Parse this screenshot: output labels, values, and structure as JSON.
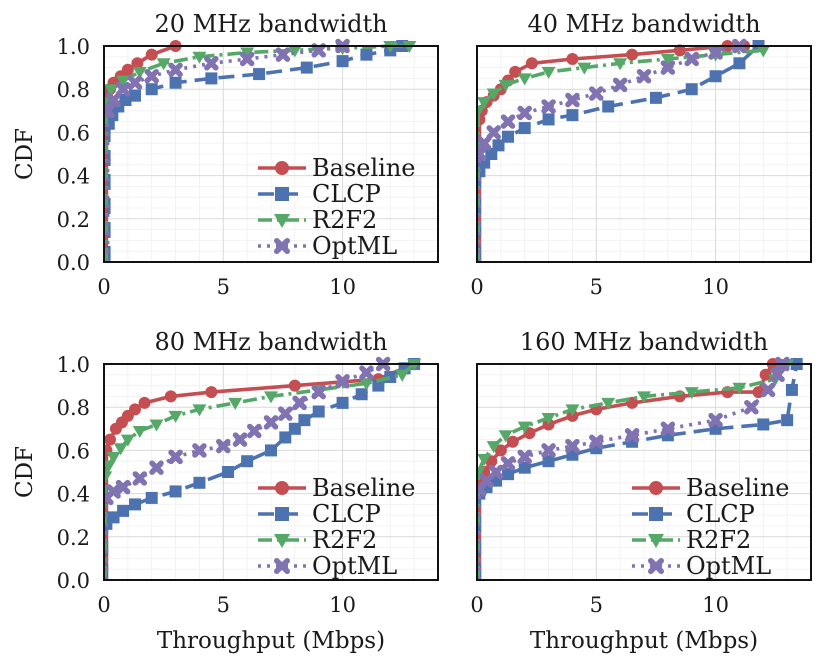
{
  "figure": {
    "ylabel": "CDF",
    "xlabel": "Throughput (Mbps)"
  },
  "series_styles": [
    {
      "name": "Baseline",
      "color": "#c44e52",
      "dash": "",
      "marker": "circle"
    },
    {
      "name": "CLCP",
      "color": "#4c72b0",
      "dash": "16,8",
      "marker": "square"
    },
    {
      "name": "R2F2",
      "color": "#55a868",
      "dash": "14,5,3,5",
      "marker": "triangle-down"
    },
    {
      "name": "OptML",
      "color": "#8172b2",
      "dash": "3,6",
      "marker": "x"
    }
  ],
  "chart_data": [
    {
      "type": "line",
      "title": "20 MHz bandwidth",
      "xlabel": "",
      "ylabel": "CDF",
      "xlim": [
        0,
        14
      ],
      "ylim": [
        0,
        1.0
      ],
      "xticks": [
        "0",
        "5",
        "10"
      ],
      "xtick_values": [
        0,
        5,
        10
      ],
      "yticks": [
        "0.0",
        "0.2",
        "0.4",
        "0.6",
        "0.8",
        "1.0"
      ],
      "ytick_values": [
        0,
        0.2,
        0.4,
        0.6,
        0.8,
        1.0
      ],
      "legend": [
        "Baseline",
        "CLCP",
        "R2F2",
        "OptML"
      ],
      "series": [
        {
          "name": "Baseline",
          "x": [
            0.1,
            0.1,
            0.15,
            0.25,
            0.4,
            0.7,
            1.0,
            1.4,
            2.0,
            3.0
          ],
          "y": [
            0.0,
            0.7,
            0.76,
            0.8,
            0.83,
            0.86,
            0.89,
            0.92,
            0.96,
            1.0
          ]
        },
        {
          "name": "CLCP",
          "x": [
            0.2,
            0.2,
            0.35,
            0.6,
            0.9,
            1.3,
            2.0,
            3.0,
            4.5,
            6.5,
            8.5,
            10.0,
            11.0,
            12.0,
            12.5
          ],
          "y": [
            0.0,
            0.64,
            0.68,
            0.72,
            0.75,
            0.77,
            0.8,
            0.83,
            0.85,
            0.87,
            0.9,
            0.93,
            0.96,
            0.98,
            1.0
          ]
        },
        {
          "name": "R2F2",
          "x": [
            0.1,
            0.1,
            0.3,
            0.8,
            1.5,
            2.5,
            4.0,
            6.0,
            8.0,
            10.0,
            12.0,
            12.8
          ],
          "y": [
            0.0,
            0.74,
            0.8,
            0.84,
            0.88,
            0.92,
            0.95,
            0.97,
            0.98,
            0.99,
            1.0,
            1.0
          ]
        },
        {
          "name": "OptML",
          "x": [
            0.15,
            0.15,
            0.4,
            0.8,
            1.3,
            2.0,
            3.0,
            4.5,
            6.0,
            7.5,
            9.0,
            10.0
          ],
          "y": [
            0.0,
            0.7,
            0.75,
            0.8,
            0.83,
            0.86,
            0.89,
            0.92,
            0.94,
            0.96,
            0.98,
            1.0
          ]
        }
      ]
    },
    {
      "type": "line",
      "title": "40 MHz bandwidth",
      "xlabel": "",
      "ylabel": "",
      "xlim": [
        0,
        14
      ],
      "ylim": [
        0,
        1.0
      ],
      "xticks": [
        "0",
        "5",
        "10"
      ],
      "xtick_values": [
        0,
        5,
        10
      ],
      "yticks": [],
      "ytick_values": [],
      "legend": [],
      "series": [
        {
          "name": "Baseline",
          "x": [
            0.1,
            0.1,
            0.2,
            0.4,
            0.7,
            1.0,
            1.3,
            1.6,
            2.3,
            4.0,
            6.5,
            8.5,
            10.5,
            11.2
          ],
          "y": [
            0.0,
            0.66,
            0.7,
            0.74,
            0.77,
            0.8,
            0.84,
            0.88,
            0.92,
            0.94,
            0.96,
            0.98,
            1.0,
            1.0
          ]
        },
        {
          "name": "CLCP",
          "x": [
            0.1,
            0.1,
            0.3,
            0.6,
            0.9,
            1.3,
            2.0,
            3.0,
            4.0,
            5.5,
            7.5,
            9.0,
            10.0,
            11.0,
            11.8
          ],
          "y": [
            0.0,
            0.42,
            0.46,
            0.5,
            0.54,
            0.58,
            0.62,
            0.66,
            0.68,
            0.72,
            0.76,
            0.8,
            0.86,
            0.92,
            1.0
          ]
        },
        {
          "name": "R2F2",
          "x": [
            0.05,
            0.05,
            0.3,
            0.7,
            1.2,
            2.0,
            3.0,
            4.5,
            6.0,
            8.0,
            10.0,
            12.0
          ],
          "y": [
            0.0,
            0.7,
            0.74,
            0.78,
            0.82,
            0.85,
            0.88,
            0.9,
            0.92,
            0.94,
            0.96,
            0.98
          ]
        },
        {
          "name": "OptML",
          "x": [
            0.1,
            0.1,
            0.3,
            0.7,
            1.3,
            2.0,
            3.0,
            4.0,
            5.0,
            6.0,
            7.0,
            8.0,
            9.0,
            10.0,
            11.0
          ],
          "y": [
            0.0,
            0.5,
            0.55,
            0.6,
            0.65,
            0.69,
            0.72,
            0.75,
            0.78,
            0.82,
            0.86,
            0.9,
            0.94,
            0.97,
            1.0
          ]
        }
      ]
    },
    {
      "type": "line",
      "title": "80 MHz bandwidth",
      "xlabel": "Throughput (Mbps)",
      "ylabel": "CDF",
      "xlim": [
        0,
        14
      ],
      "ylim": [
        0,
        1.0
      ],
      "xticks": [
        "0",
        "5",
        "10"
      ],
      "xtick_values": [
        0,
        5,
        10
      ],
      "yticks": [
        "0.0",
        "0.2",
        "0.4",
        "0.6",
        "0.8",
        "1.0"
      ],
      "ytick_values": [
        0,
        0.2,
        0.4,
        0.6,
        0.8,
        1.0
      ],
      "legend": [
        "Baseline",
        "CLCP",
        "R2F2",
        "OptML"
      ],
      "series": [
        {
          "name": "Baseline",
          "x": [
            0.1,
            0.1,
            0.25,
            0.5,
            0.75,
            1.0,
            1.3,
            1.7,
            2.8,
            4.5,
            8.0,
            11.5,
            13.0
          ],
          "y": [
            0.0,
            0.6,
            0.65,
            0.7,
            0.73,
            0.76,
            0.79,
            0.82,
            0.85,
            0.87,
            0.9,
            0.93,
            1.0
          ]
        },
        {
          "name": "CLCP",
          "x": [
            0.1,
            0.1,
            0.4,
            0.8,
            1.3,
            2.0,
            3.0,
            4.0,
            5.2,
            6.0,
            7.0,
            7.6,
            8.0,
            8.4,
            9.0,
            10.0,
            10.8,
            11.5,
            12.0,
            12.6,
            13.0
          ],
          "y": [
            0.0,
            0.26,
            0.29,
            0.32,
            0.35,
            0.38,
            0.41,
            0.45,
            0.5,
            0.55,
            0.6,
            0.66,
            0.7,
            0.74,
            0.78,
            0.82,
            0.86,
            0.9,
            0.94,
            0.98,
            1.0
          ]
        },
        {
          "name": "R2F2",
          "x": [
            0.05,
            0.05,
            0.2,
            0.4,
            0.7,
            1.0,
            1.5,
            2.2,
            3.0,
            4.0,
            5.5,
            7.0,
            9.0,
            11.0,
            12.5,
            13.0
          ],
          "y": [
            0.0,
            0.48,
            0.53,
            0.57,
            0.61,
            0.65,
            0.69,
            0.72,
            0.76,
            0.79,
            0.82,
            0.85,
            0.88,
            0.91,
            0.95,
            1.0
          ]
        },
        {
          "name": "OptML",
          "x": [
            0.1,
            0.1,
            0.4,
            0.8,
            1.5,
            2.2,
            3.0,
            4.0,
            5.0,
            5.7,
            6.3,
            7.0,
            7.6,
            8.2,
            9.0,
            10.0,
            11.0,
            11.7
          ],
          "y": [
            0.0,
            0.38,
            0.41,
            0.43,
            0.47,
            0.52,
            0.57,
            0.6,
            0.62,
            0.65,
            0.69,
            0.73,
            0.77,
            0.82,
            0.87,
            0.92,
            0.96,
            1.0
          ]
        }
      ]
    },
    {
      "type": "line",
      "title": "160 MHz bandwidth",
      "xlabel": "Throughput (Mbps)",
      "ylabel": "",
      "xlim": [
        0,
        14
      ],
      "ylim": [
        0,
        1.0
      ],
      "xticks": [
        "0",
        "5",
        "10"
      ],
      "xtick_values": [
        0,
        5,
        10
      ],
      "yticks": [],
      "ytick_values": [],
      "legend": [
        "Baseline",
        "CLCP",
        "R2F2",
        "OptML"
      ],
      "series": [
        {
          "name": "Baseline",
          "x": [
            0.1,
            0.1,
            0.3,
            0.6,
            1.0,
            1.5,
            2.2,
            3.0,
            4.0,
            5.0,
            6.5,
            8.5,
            10.5,
            11.8,
            12.1,
            12.4
          ],
          "y": [
            0.0,
            0.45,
            0.5,
            0.55,
            0.6,
            0.64,
            0.68,
            0.72,
            0.76,
            0.79,
            0.82,
            0.85,
            0.87,
            0.87,
            0.95,
            1.0
          ]
        },
        {
          "name": "CLCP",
          "x": [
            0.1,
            0.1,
            0.4,
            0.8,
            1.3,
            2.0,
            3.0,
            4.0,
            5.0,
            6.5,
            8.0,
            10.0,
            12.0,
            13.0,
            13.2,
            13.4
          ],
          "y": [
            0.0,
            0.4,
            0.43,
            0.46,
            0.49,
            0.52,
            0.55,
            0.58,
            0.61,
            0.64,
            0.67,
            0.7,
            0.72,
            0.74,
            0.88,
            1.0
          ]
        },
        {
          "name": "R2F2",
          "x": [
            0.05,
            0.05,
            0.3,
            0.7,
            1.2,
            2.0,
            3.0,
            4.0,
            5.5,
            7.0,
            9.0,
            11.0,
            12.5,
            13.0
          ],
          "y": [
            0.0,
            0.5,
            0.56,
            0.62,
            0.67,
            0.71,
            0.75,
            0.79,
            0.82,
            0.85,
            0.87,
            0.89,
            0.93,
            1.0
          ]
        },
        {
          "name": "OptML",
          "x": [
            0.1,
            0.1,
            0.4,
            0.8,
            1.3,
            2.0,
            3.0,
            4.0,
            5.0,
            6.5,
            8.0,
            10.0,
            11.5,
            12.2,
            12.6,
            12.8
          ],
          "y": [
            0.0,
            0.42,
            0.46,
            0.5,
            0.54,
            0.57,
            0.6,
            0.62,
            0.64,
            0.67,
            0.7,
            0.74,
            0.8,
            0.88,
            0.95,
            1.0
          ]
        }
      ]
    }
  ]
}
